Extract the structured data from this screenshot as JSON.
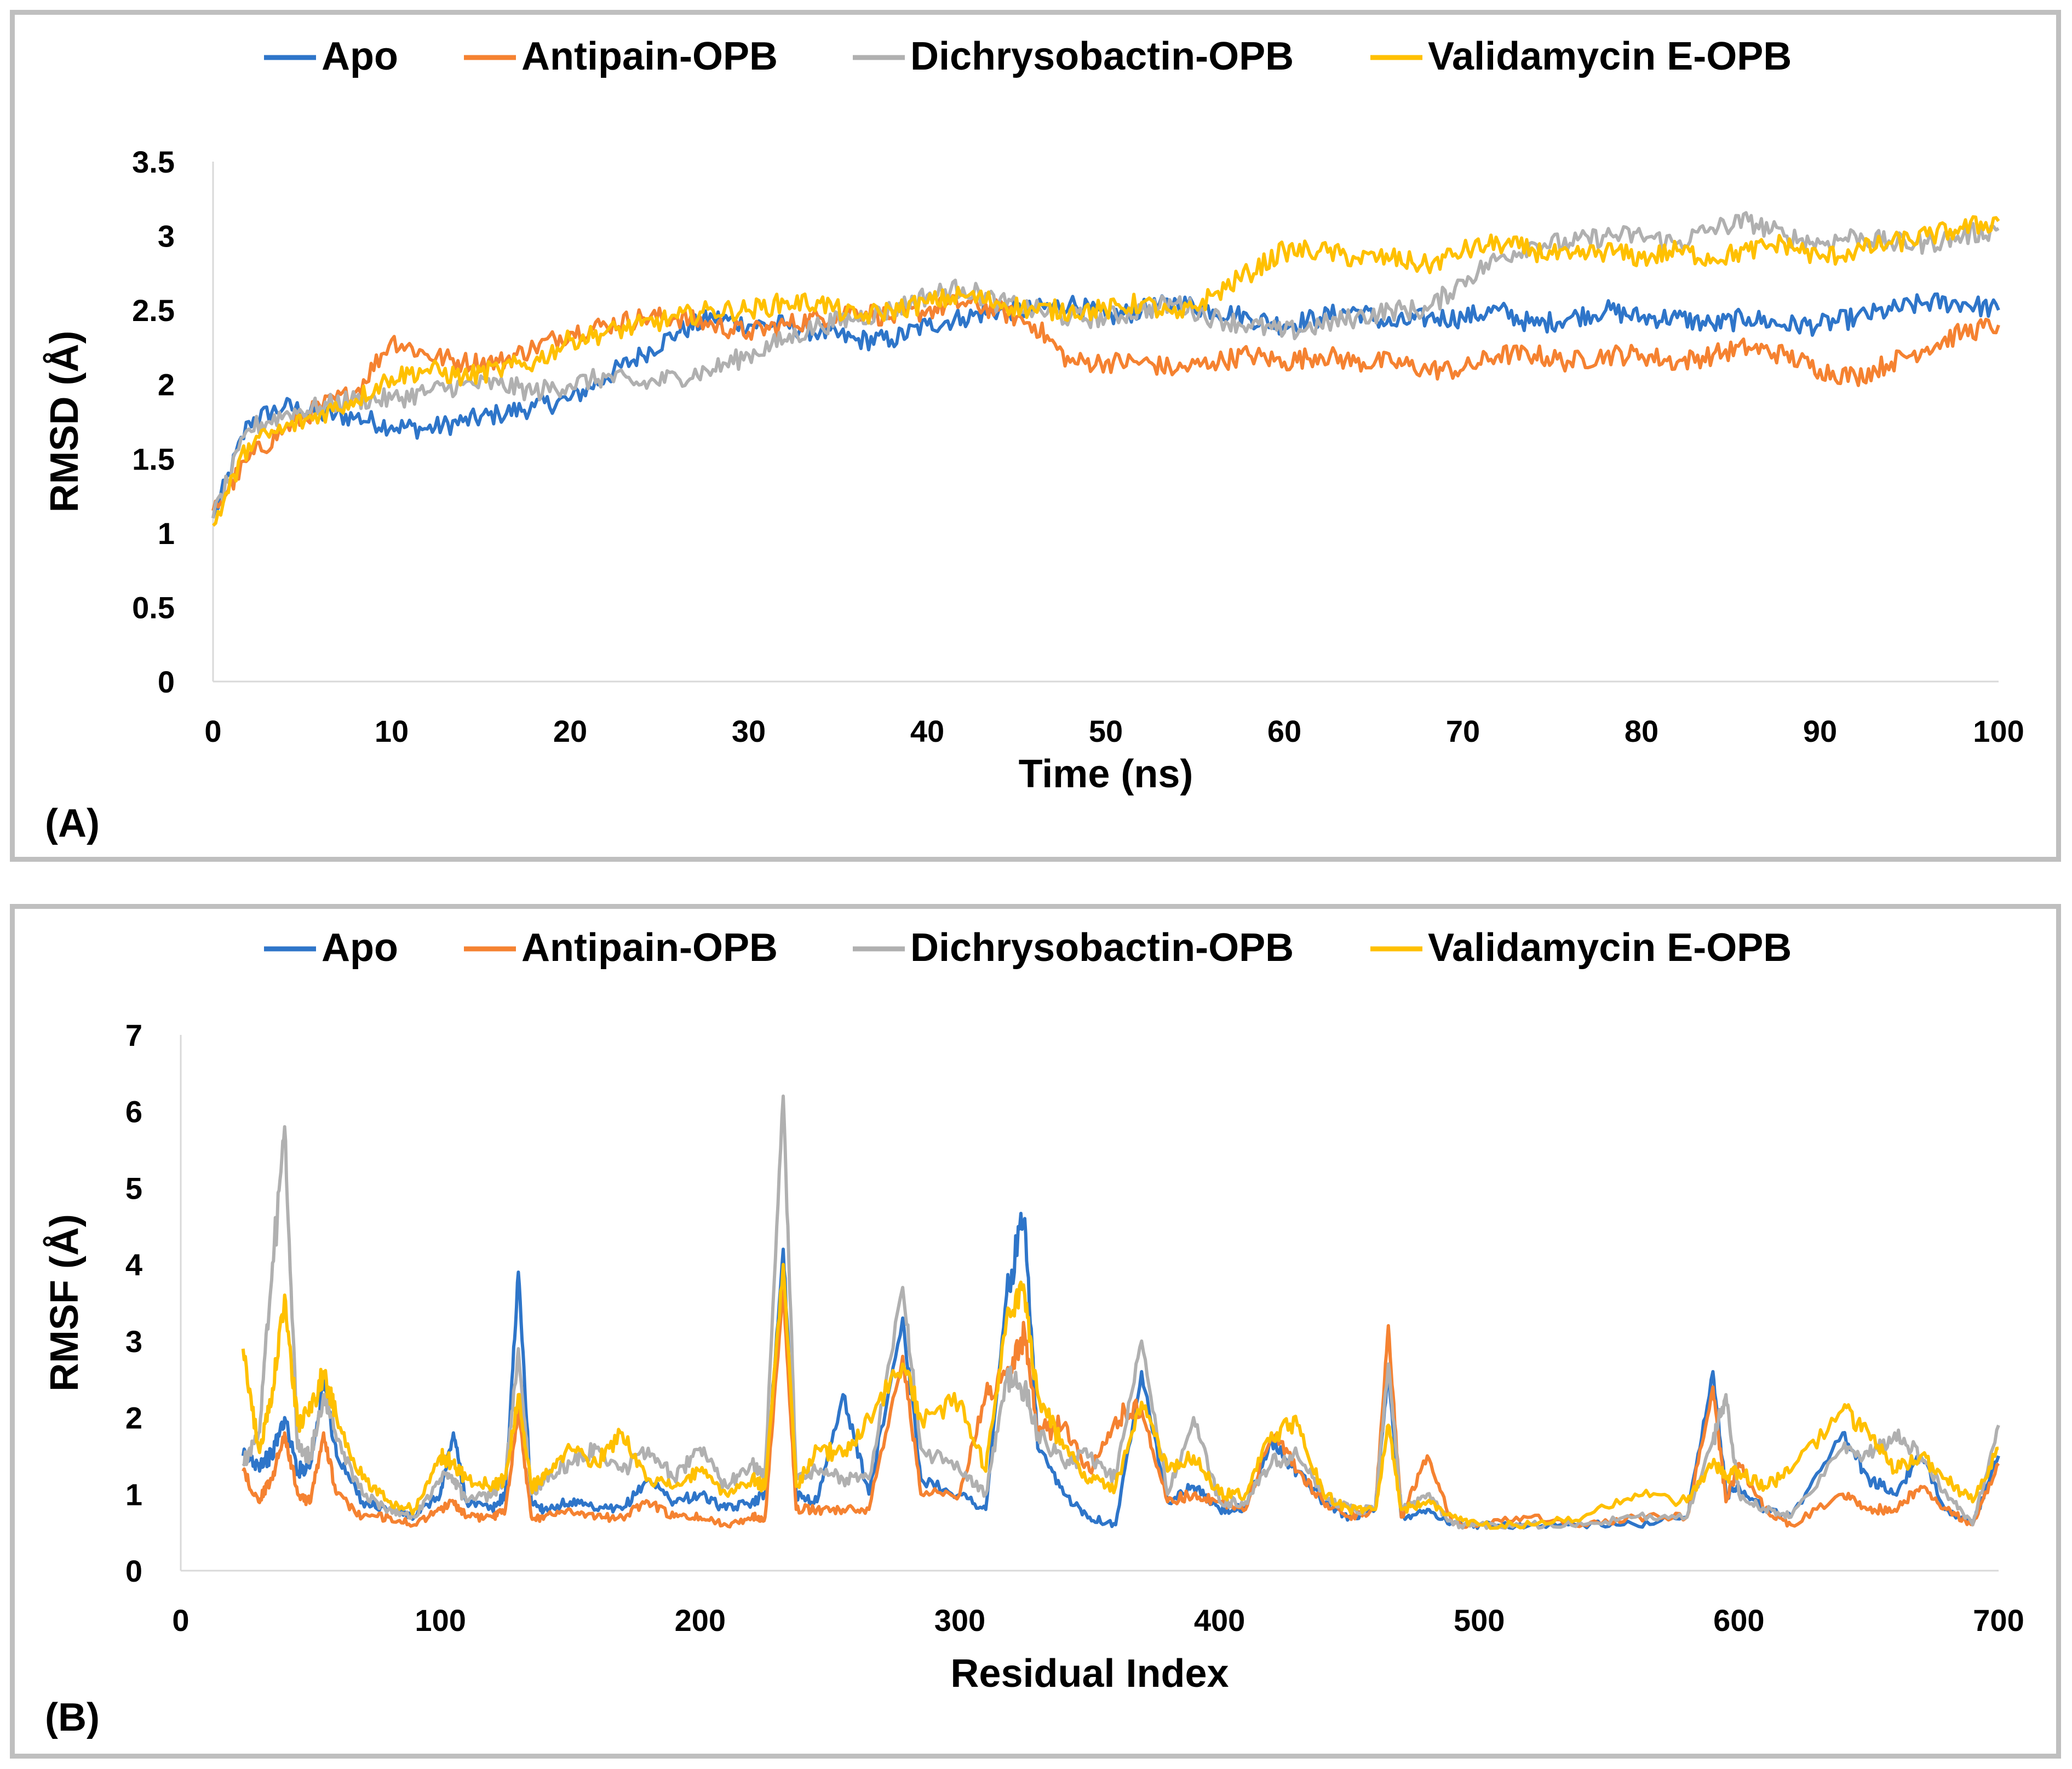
{
  "legend": [
    {
      "name": "Apo",
      "color": "#2E75C9"
    },
    {
      "name": "Antipain-OPB",
      "color": "#F58231"
    },
    {
      "name": "Dichrysobactin-OPB",
      "color": "#B0B0B0"
    },
    {
      "name": "Validamycin E-OPB",
      "color": "#FFC000"
    }
  ],
  "chart_data": [
    {
      "panel_label": "(A)",
      "type": "line",
      "xlabel": "Time (ns)",
      "ylabel": "RMSD (Å)",
      "xlim": [
        0,
        100
      ],
      "ylim": [
        0,
        3.5
      ],
      "xticks": [
        "0",
        "10",
        "20",
        "30",
        "40",
        "50",
        "60",
        "70",
        "80",
        "90",
        "100"
      ],
      "yticks": [
        "0",
        "0.5",
        "1",
        "1.5",
        "2",
        "2.5",
        "3",
        "3.5"
      ],
      "grid": false,
      "legend_position": "top",
      "x": [
        0,
        2,
        4,
        6,
        8,
        10,
        12,
        14,
        16,
        18,
        20,
        22,
        24,
        26,
        28,
        30,
        32,
        34,
        36,
        38,
        40,
        42,
        44,
        46,
        48,
        50,
        52,
        54,
        56,
        58,
        60,
        62,
        64,
        66,
        68,
        70,
        72,
        74,
        76,
        78,
        80,
        82,
        84,
        86,
        88,
        90,
        92,
        94,
        96,
        98,
        100
      ],
      "series": [
        {
          "name": "Apo",
          "color": "#2E75C9",
          "values": [
            1.1,
            1.75,
            1.85,
            1.8,
            1.78,
            1.72,
            1.7,
            1.75,
            1.8,
            1.85,
            1.9,
            2.05,
            2.2,
            2.35,
            2.45,
            2.4,
            2.4,
            2.35,
            2.3,
            2.3,
            2.4,
            2.45,
            2.5,
            2.5,
            2.55,
            2.45,
            2.5,
            2.55,
            2.5,
            2.45,
            2.4,
            2.45,
            2.5,
            2.4,
            2.45,
            2.45,
            2.5,
            2.4,
            2.45,
            2.5,
            2.45,
            2.45,
            2.4,
            2.45,
            2.4,
            2.4,
            2.45,
            2.5,
            2.55,
            2.55,
            2.5
          ]
        },
        {
          "name": "Antipain-OPB",
          "color": "#F58231",
          "values": [
            1.15,
            1.5,
            1.7,
            1.85,
            1.95,
            2.3,
            2.2,
            2.15,
            2.15,
            2.25,
            2.35,
            2.4,
            2.45,
            2.45,
            2.4,
            2.35,
            2.4,
            2.45,
            2.5,
            2.45,
            2.5,
            2.55,
            2.5,
            2.4,
            2.15,
            2.15,
            2.15,
            2.1,
            2.15,
            2.2,
            2.15,
            2.2,
            2.15,
            2.15,
            2.1,
            2.1,
            2.2,
            2.2,
            2.15,
            2.2,
            2.2,
            2.15,
            2.2,
            2.25,
            2.2,
            2.1,
            2.05,
            2.15,
            2.25,
            2.35,
            2.4
          ]
        },
        {
          "name": "Dichrysobactin-OPB",
          "color": "#B0B0B0",
          "values": [
            1.1,
            1.7,
            1.8,
            1.85,
            1.9,
            1.9,
            1.95,
            2.0,
            2.0,
            1.95,
            2.0,
            2.05,
            2.0,
            2.05,
            2.1,
            2.2,
            2.3,
            2.4,
            2.45,
            2.5,
            2.6,
            2.65,
            2.55,
            2.5,
            2.45,
            2.45,
            2.5,
            2.55,
            2.45,
            2.4,
            2.35,
            2.4,
            2.45,
            2.5,
            2.5,
            2.7,
            2.85,
            2.95,
            2.95,
            3.0,
            3.0,
            2.95,
            3.05,
            3.1,
            3.0,
            2.95,
            3.0,
            2.95,
            2.95,
            3.0,
            3.05
          ]
        },
        {
          "name": "Validamycin E-OPB",
          "color": "#FFC000",
          "values": [
            1.05,
            1.6,
            1.7,
            1.8,
            1.9,
            2.05,
            2.1,
            2.05,
            2.1,
            2.15,
            2.3,
            2.35,
            2.4,
            2.45,
            2.5,
            2.5,
            2.55,
            2.55,
            2.45,
            2.5,
            2.55,
            2.6,
            2.55,
            2.5,
            2.5,
            2.5,
            2.55,
            2.45,
            2.6,
            2.75,
            2.9,
            2.9,
            2.85,
            2.85,
            2.8,
            2.9,
            2.95,
            2.9,
            2.85,
            2.9,
            2.85,
            2.9,
            2.85,
            2.9,
            2.95,
            2.85,
            2.9,
            2.95,
            3.0,
            3.05,
            3.1
          ]
        }
      ]
    },
    {
      "panel_label": "(B)",
      "type": "line",
      "xlabel": "Residual Index",
      "ylabel": "RMSF (Å)",
      "xlim": [
        0,
        700
      ],
      "ylim": [
        0,
        7
      ],
      "xticks": [
        "0",
        "100",
        "200",
        "300",
        "400",
        "500",
        "600",
        "700"
      ],
      "yticks": [
        "0",
        "1",
        "2",
        "3",
        "4",
        "5",
        "6",
        "7"
      ],
      "grid": false,
      "legend_position": "top",
      "x": [
        24,
        30,
        35,
        40,
        45,
        50,
        55,
        60,
        70,
        80,
        90,
        100,
        105,
        110,
        120,
        125,
        130,
        135,
        140,
        150,
        160,
        170,
        180,
        190,
        200,
        210,
        220,
        225,
        232,
        237,
        245,
        255,
        265,
        278,
        285,
        300,
        310,
        318,
        325,
        330,
        340,
        350,
        360,
        370,
        380,
        390,
        400,
        410,
        420,
        430,
        440,
        450,
        460,
        465,
        470,
        480,
        490,
        500,
        520,
        540,
        560,
        580,
        590,
        595,
        600,
        610,
        620,
        640,
        650,
        660,
        670,
        680,
        690,
        700
      ],
      "series": [
        {
          "name": "Apo",
          "color": "#2E75C9",
          "values": [
            1.5,
            1.4,
            1.5,
            2.0,
            1.3,
            1.4,
            2.5,
            1.5,
            0.9,
            0.8,
            0.7,
            1.0,
            1.8,
            0.9,
            0.8,
            1.0,
            3.9,
            0.9,
            0.8,
            0.9,
            0.8,
            0.8,
            1.2,
            0.9,
            1.0,
            0.8,
            0.9,
            1.0,
            4.2,
            1.0,
            0.9,
            2.3,
            1.0,
            3.3,
            1.2,
            1.0,
            0.8,
            3.6,
            4.6,
            1.6,
            1.0,
            0.7,
            0.6,
            2.6,
            0.9,
            1.1,
            0.8,
            0.8,
            1.7,
            1.3,
            0.9,
            0.7,
            0.8,
            2.6,
            0.7,
            0.8,
            0.6,
            0.6,
            0.6,
            0.6,
            0.6,
            0.7,
            2.6,
            1.0,
            1.1,
            0.8,
            0.7,
            1.8,
            1.2,
            1.0,
            1.5,
            0.8,
            0.6,
            1.5
          ]
        },
        {
          "name": "Antipain-OPB",
          "color": "#F58231",
          "values": [
            1.3,
            0.9,
            1.2,
            1.8,
            1.0,
            0.9,
            1.8,
            1.0,
            0.7,
            0.7,
            0.6,
            0.8,
            0.9,
            0.7,
            0.7,
            0.8,
            2.1,
            0.7,
            0.7,
            0.8,
            0.7,
            0.7,
            0.9,
            0.7,
            0.7,
            0.6,
            0.7,
            0.7,
            3.7,
            0.8,
            0.8,
            0.8,
            0.8,
            2.8,
            1.0,
            1.0,
            2.3,
            2.6,
            3.1,
            1.8,
            1.9,
            1.3,
            2.0,
            2.1,
            0.9,
            1.0,
            0.9,
            0.8,
            1.8,
            1.3,
            0.9,
            0.7,
            0.8,
            3.2,
            0.7,
            1.5,
            0.6,
            0.6,
            0.7,
            0.6,
            0.7,
            0.7,
            2.4,
            0.9,
            1.4,
            0.8,
            0.6,
            1.0,
            0.8,
            0.8,
            1.1,
            0.8,
            0.6,
            1.4
          ]
        },
        {
          "name": "Dichrysobactin-OPB",
          "color": "#B0B0B0",
          "values": [
            1.4,
            1.8,
            3.8,
            5.8,
            1.6,
            1.5,
            2.3,
            1.7,
            1.0,
            0.8,
            0.7,
            1.2,
            1.2,
            0.9,
            1.0,
            1.2,
            2.9,
            1.0,
            1.2,
            1.4,
            1.6,
            1.3,
            1.6,
            1.2,
            1.6,
            1.1,
            1.4,
            1.3,
            6.2,
            1.2,
            1.3,
            1.2,
            1.2,
            3.7,
            1.6,
            1.3,
            1.0,
            2.5,
            2.4,
            1.8,
            1.4,
            1.5,
            1.2,
            3.0,
            1.0,
            2.0,
            0.9,
            0.9,
            1.4,
            1.5,
            1.0,
            0.8,
            0.8,
            2.7,
            0.8,
            1.0,
            0.6,
            0.6,
            0.6,
            0.6,
            0.7,
            0.7,
            1.7,
            2.3,
            1.0,
            0.8,
            0.7,
            1.6,
            1.5,
            1.8,
            1.5,
            1.0,
            0.6,
            1.9
          ]
        },
        {
          "name": "Validamycin E-OPB",
          "color": "#FFC000",
          "values": [
            2.9,
            1.6,
            2.2,
            3.6,
            1.9,
            2.1,
            2.6,
            2.0,
            1.2,
            0.9,
            0.8,
            1.5,
            1.4,
            1.2,
            1.1,
            1.2,
            2.3,
            1.1,
            1.2,
            1.6,
            1.4,
            1.8,
            1.2,
            1.1,
            1.3,
            1.0,
            1.2,
            1.1,
            4.0,
            1.1,
            1.6,
            1.5,
            2.0,
            2.7,
            2.0,
            2.2,
            1.3,
            3.3,
            3.6,
            2.3,
            1.6,
            1.2,
            1.1,
            2.2,
            1.3,
            1.5,
            1.0,
            1.0,
            1.8,
            1.9,
            1.0,
            0.8,
            0.8,
            1.9,
            0.8,
            0.9,
            0.7,
            0.6,
            0.6,
            0.7,
            1.0,
            0.9,
            1.4,
            1.2,
            1.3,
            1.1,
            1.3,
            2.1,
            1.8,
            1.3,
            1.5,
            1.2,
            0.9,
            1.6
          ]
        }
      ]
    }
  ]
}
